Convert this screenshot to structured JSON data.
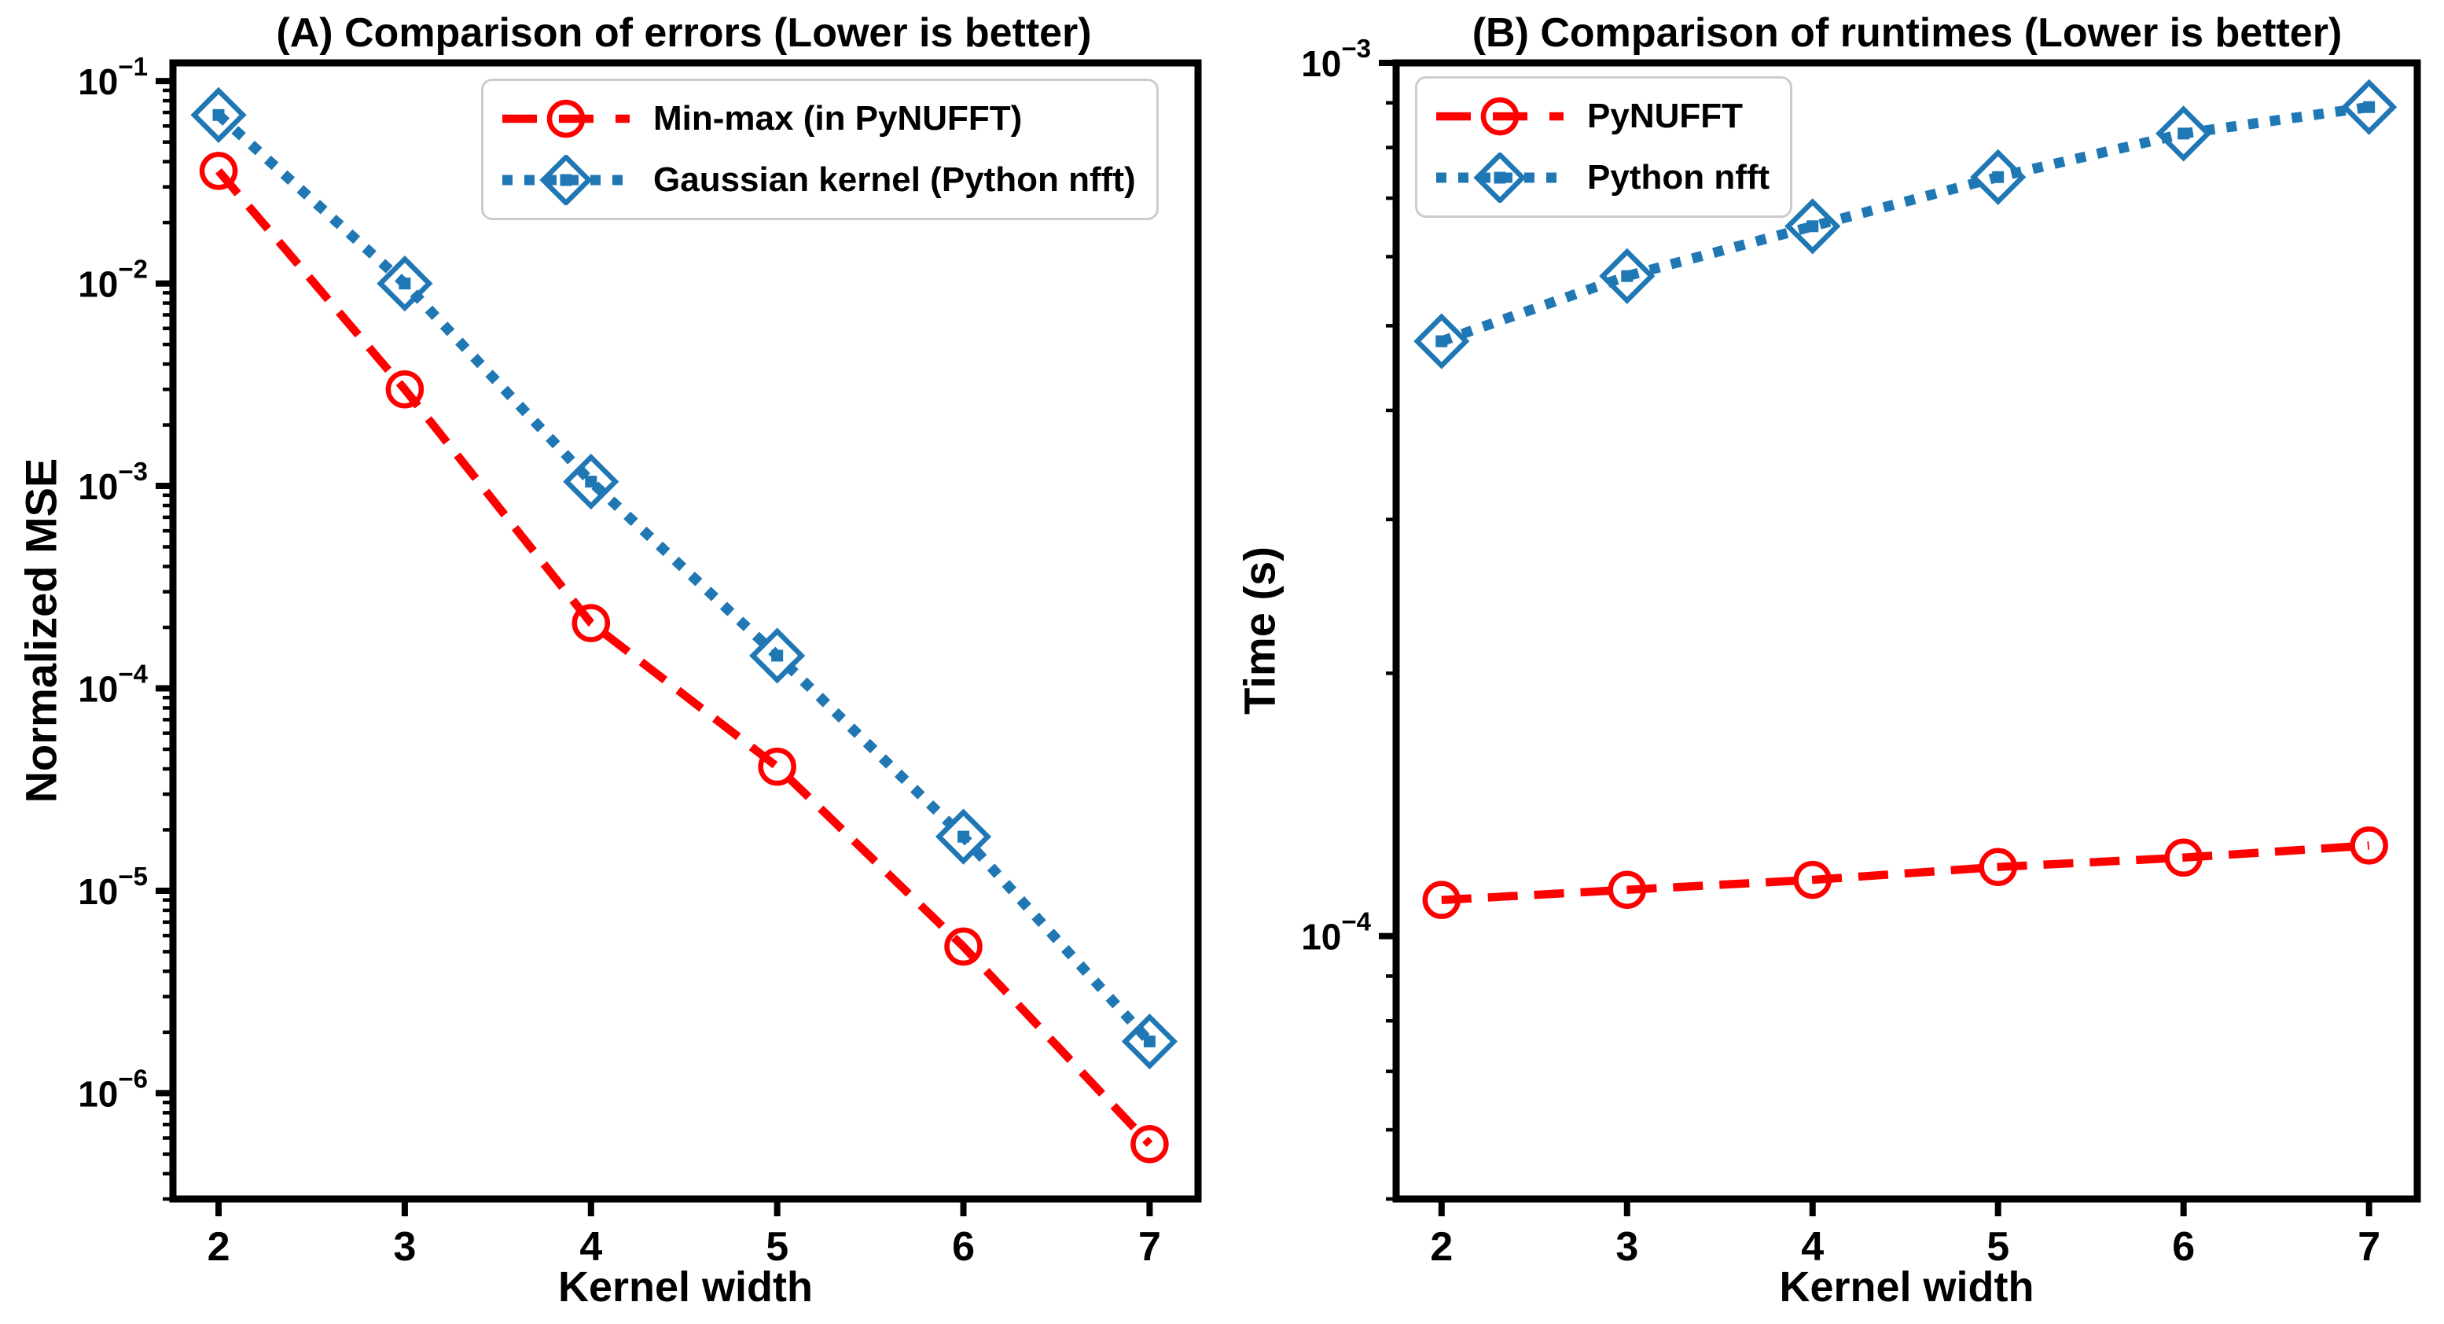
{
  "figure": {
    "background": "#ffffff",
    "colors": {
      "red_series": "#ff0000",
      "blue_series": "#1f77b4",
      "axis": "#000000",
      "legend_border": "#cccccc"
    }
  },
  "chart_data": [
    {
      "type": "line",
      "panel_label": "A",
      "title": "(A) Comparison of errors (Lower is better)",
      "xlabel": "Kernel width",
      "ylabel": "Normalized MSE",
      "x": [
        2,
        3,
        4,
        5,
        6,
        7
      ],
      "xticks": [
        2,
        3,
        4,
        5,
        6,
        7
      ],
      "xlim": [
        1.755,
        7.26
      ],
      "yscale": "log",
      "ylim": [
        3e-07,
        0.123
      ],
      "ytick_exponents": [
        -1,
        -2,
        -3,
        -4,
        -5,
        -6
      ],
      "grid": false,
      "legend_position": "upper right",
      "series": [
        {
          "name": "Min-max (in PyNUFFT)",
          "color": "#ff0000",
          "linestyle": "dashed",
          "marker": "circle",
          "values": [
            0.036,
            0.003,
            0.00021,
            4.1e-05,
            5.3e-06,
            5.6e-07
          ]
        },
        {
          "name": "Gaussian kernel (Python nfft)",
          "color": "#1f77b4",
          "linestyle": "dotted",
          "marker": "diamond",
          "values": [
            0.068,
            0.01,
            0.00105,
            0.000145,
            1.85e-05,
            1.8e-06
          ]
        }
      ]
    },
    {
      "type": "line",
      "panel_label": "B",
      "title": "(B) Comparison of runtimes (Lower is better)",
      "xlabel": "Kernel width",
      "ylabel": "Time (s)",
      "x": [
        2,
        3,
        4,
        5,
        6,
        7
      ],
      "xticks": [
        2,
        3,
        4,
        5,
        6,
        7
      ],
      "xlim": [
        1.755,
        7.26
      ],
      "yscale": "log",
      "ylim": [
        5e-05,
        0.001
      ],
      "ytick_exponents": [
        -3,
        -4
      ],
      "grid": false,
      "legend_position": "upper left",
      "series": [
        {
          "name": "PyNUFFT",
          "color": "#ff0000",
          "linestyle": "dashed",
          "marker": "circle",
          "values": [
            0.00011,
            0.000113,
            0.000116,
            0.00012,
            0.000123,
            0.000127
          ]
        },
        {
          "name": "Python nfft",
          "color": "#1f77b4",
          "linestyle": "dotted",
          "marker": "diamond",
          "values": [
            0.00048,
            0.00057,
            0.00065,
            0.00074,
            0.00083,
            0.00089
          ]
        }
      ]
    }
  ]
}
